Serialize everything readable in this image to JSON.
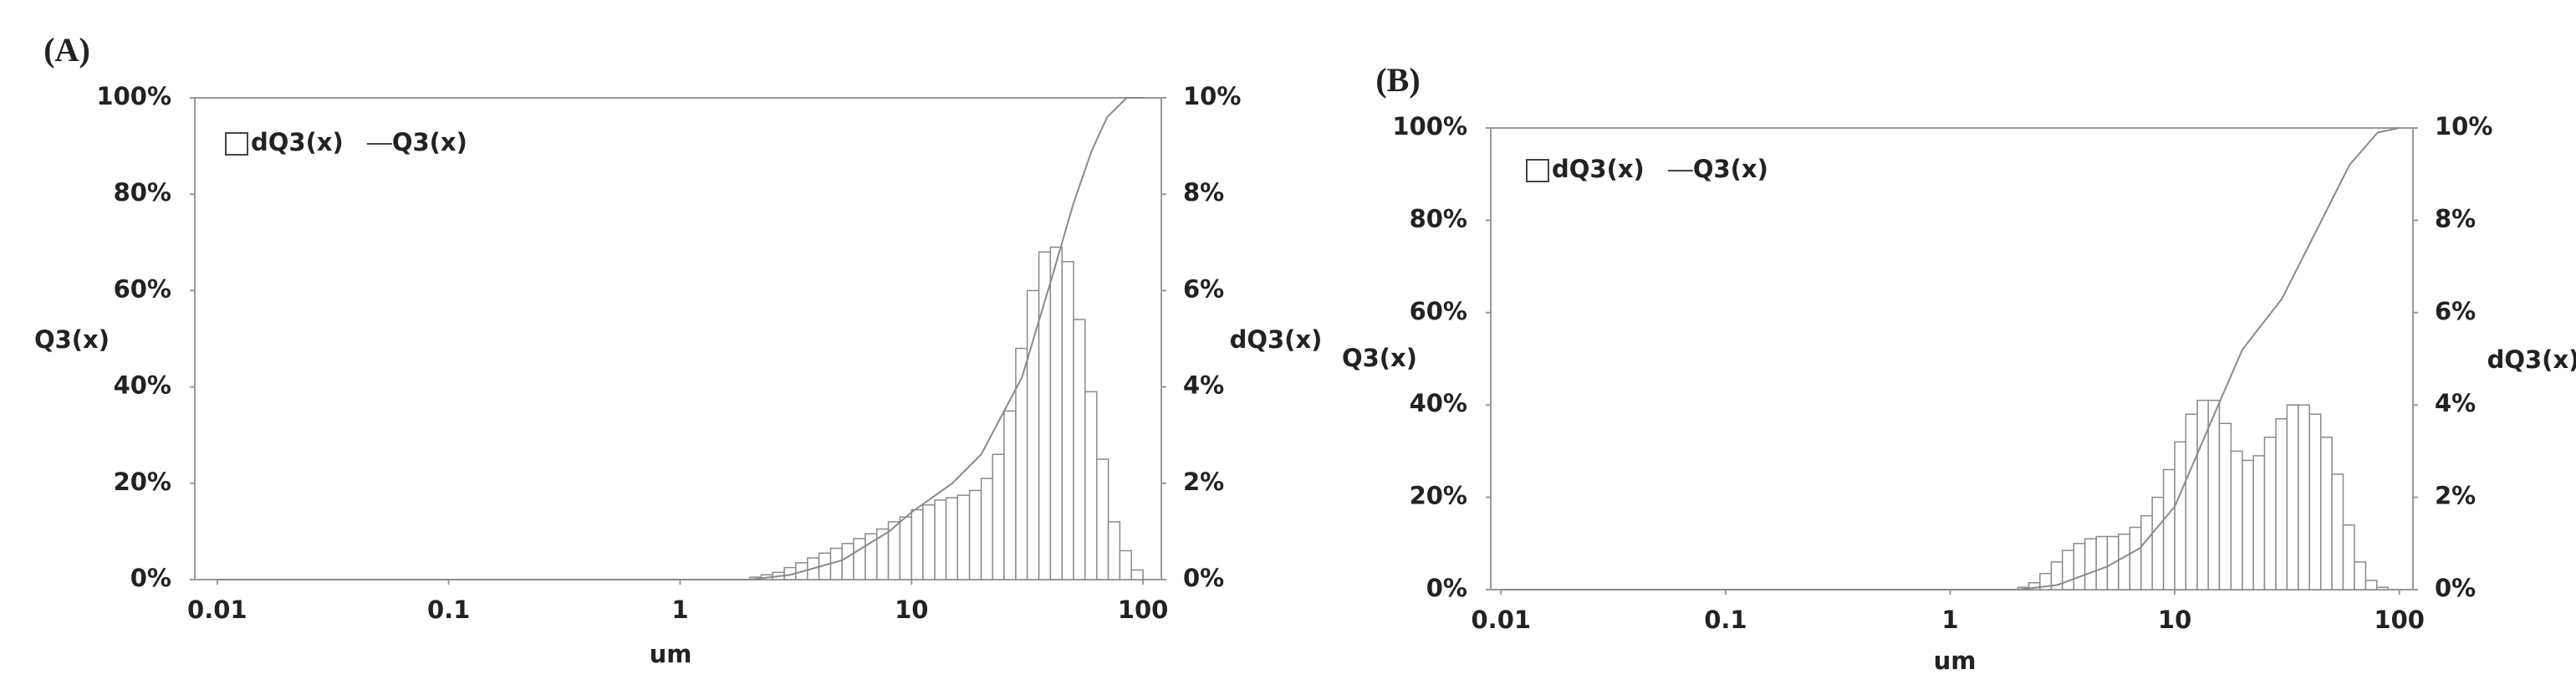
{
  "chart_data": [
    {
      "type": "histogram",
      "panel_label": "(A)",
      "xlabel": "um",
      "ylabel": "Q3(x)",
      "y2label": "dQ3(x)",
      "log_x": true,
      "xlim": [
        0.008,
        120
      ],
      "xticks": [
        0.01,
        0.1,
        1,
        10,
        100
      ],
      "ylim": [
        0,
        100
      ],
      "yticks": [
        {
          "value": 0,
          "label": "0%"
        },
        {
          "value": 20,
          "label": "20%"
        },
        {
          "value": 40,
          "label": "40%"
        },
        {
          "value": 60,
          "label": "60%"
        },
        {
          "value": 80,
          "label": "80%"
        },
        {
          "value": 100,
          "label": "100%"
        }
      ],
      "y2lim": [
        0,
        10
      ],
      "y2ticks": [
        {
          "value": 0,
          "label": "0%"
        },
        {
          "value": 2,
          "label": "2%"
        },
        {
          "value": 4,
          "label": "4%"
        },
        {
          "value": 6,
          "label": "6%"
        },
        {
          "value": 8,
          "label": "8%"
        },
        {
          "value": 10,
          "label": "10%"
        }
      ],
      "series": [
        {
          "name": "dQ3(x)",
          "type": "histogram",
          "axis": "y2",
          "color": "#8a8a8a",
          "bins": [
            2.0,
            2.24,
            2.51,
            2.82,
            3.16,
            3.55,
            3.98,
            4.47,
            5.01,
            5.62,
            6.31,
            7.08,
            7.94,
            8.91,
            10.0,
            11.2,
            12.6,
            14.1,
            15.8,
            17.8,
            20.0,
            22.4,
            25.1,
            28.2,
            31.6,
            35.5,
            39.8,
            44.7,
            50.1,
            56.2,
            63.1,
            70.8,
            79.4,
            89.1,
            100
          ],
          "values": [
            0.05,
            0.1,
            0.15,
            0.25,
            0.35,
            0.45,
            0.55,
            0.65,
            0.75,
            0.85,
            0.95,
            1.05,
            1.2,
            1.3,
            1.45,
            1.55,
            1.65,
            1.7,
            1.75,
            1.85,
            2.1,
            2.6,
            3.5,
            4.8,
            6.0,
            6.8,
            6.9,
            6.6,
            5.4,
            3.9,
            2.5,
            1.2,
            0.6,
            0.2
          ]
        },
        {
          "name": "Q3(x)",
          "type": "line",
          "color": "#8a8a8a",
          "x": [
            0.01,
            1,
            2,
            3,
            5,
            8,
            10,
            15,
            20,
            30,
            40,
            50,
            60,
            70,
            85,
            100
          ],
          "values": [
            0,
            0,
            0,
            1,
            4,
            10,
            14,
            20,
            26,
            42,
            62,
            78,
            89,
            96,
            100,
            100
          ]
        }
      ]
    },
    {
      "type": "histogram",
      "panel_label": "(B)",
      "xlabel": "um",
      "ylabel": "Q3(x)",
      "y2label": "dQ3(x)",
      "log_x": true,
      "xlim": [
        0.009,
        115
      ],
      "xticks": [
        0.01,
        0.1,
        1,
        10,
        100
      ],
      "ylim": [
        0,
        100
      ],
      "yticks": [
        {
          "value": 0,
          "label": "0%"
        },
        {
          "value": 20,
          "label": "20%"
        },
        {
          "value": 40,
          "label": "40%"
        },
        {
          "value": 60,
          "label": "60%"
        },
        {
          "value": 80,
          "label": "80%"
        },
        {
          "value": 100,
          "label": "100%"
        }
      ],
      "y2lim": [
        0,
        10
      ],
      "y2ticks": [
        {
          "value": 0,
          "label": "0%"
        },
        {
          "value": 2,
          "label": "2%"
        },
        {
          "value": 4,
          "label": "4%"
        },
        {
          "value": 6,
          "label": "6%"
        },
        {
          "value": 8,
          "label": "8%"
        },
        {
          "value": 10,
          "label": "10%"
        }
      ],
      "series": [
        {
          "name": "dQ3(x)",
          "type": "histogram",
          "axis": "y2",
          "color": "#8a8a8a",
          "bins": [
            2.0,
            2.24,
            2.51,
            2.82,
            3.16,
            3.55,
            3.98,
            4.47,
            5.01,
            5.62,
            6.31,
            7.08,
            7.94,
            8.91,
            10.0,
            11.2,
            12.6,
            14.1,
            15.8,
            17.8,
            20.0,
            22.4,
            25.1,
            28.2,
            31.6,
            35.5,
            39.8,
            44.7,
            50.1,
            56.2,
            63.1,
            70.8,
            79.4,
            89.1,
            100
          ],
          "values": [
            0.05,
            0.15,
            0.35,
            0.6,
            0.85,
            1.0,
            1.1,
            1.15,
            1.15,
            1.2,
            1.35,
            1.6,
            2.0,
            2.6,
            3.2,
            3.8,
            4.1,
            4.1,
            3.6,
            3.0,
            2.8,
            2.9,
            3.3,
            3.7,
            4.0,
            4.0,
            3.8,
            3.3,
            2.5,
            1.4,
            0.6,
            0.2,
            0.05,
            0
          ]
        },
        {
          "name": "Q3(x)",
          "type": "line",
          "color": "#8a8a8a",
          "x": [
            0.01,
            1,
            2,
            3,
            5,
            7,
            10,
            15,
            20,
            30,
            40,
            60,
            80,
            100
          ],
          "values": [
            0,
            0,
            0,
            1,
            5,
            9,
            18,
            38,
            52,
            63,
            75,
            92,
            99,
            100
          ]
        }
      ]
    }
  ]
}
